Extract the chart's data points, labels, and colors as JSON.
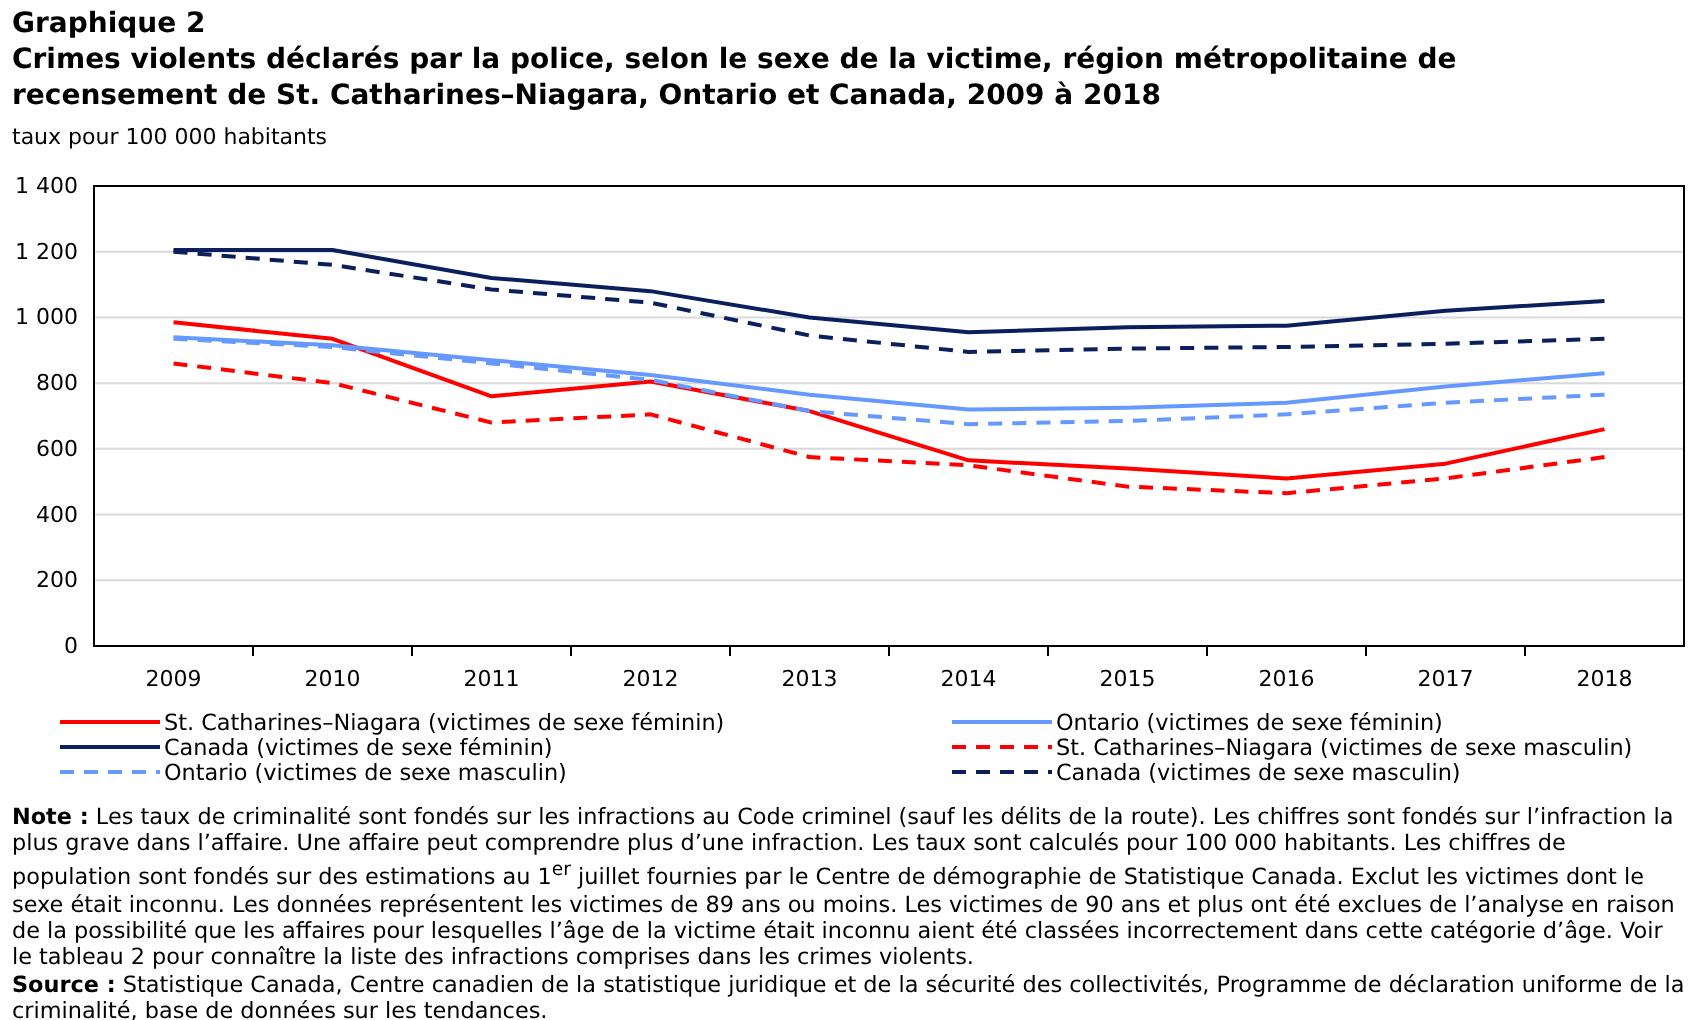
{
  "chart_data": {
    "type": "line",
    "title": "Graphique 2",
    "subtitle": "Crimes violents déclarés par la police, selon le sexe de la victime, région métropolitaine de recensement de St. Catharines–Niagara, Ontario et Canada, 2009 à 2018",
    "ylabel": "taux pour 100 000 habitants",
    "categories": [
      "2009",
      "2010",
      "2011",
      "2012",
      "2013",
      "2014",
      "2015",
      "2016",
      "2017",
      "2018"
    ],
    "series": [
      {
        "name": "St. Catharines–Niagara (victimes de sexe féminin)",
        "color": "#ff0000",
        "line_style": "solid",
        "values": [
          985,
          935,
          760,
          805,
          715,
          565,
          540,
          510,
          555,
          660
        ]
      },
      {
        "name": "Ontario (victimes de sexe féminin)",
        "color": "#6699ff",
        "line_style": "solid",
        "values": [
          940,
          915,
          870,
          825,
          765,
          720,
          725,
          740,
          790,
          830
        ]
      },
      {
        "name": "Canada (victimes de sexe féminin)",
        "color": "#0a1f5c",
        "line_style": "solid",
        "values": [
          1205,
          1205,
          1120,
          1080,
          1000,
          955,
          970,
          975,
          1020,
          1050
        ]
      },
      {
        "name": "St. Catharines–Niagara (victimes de sexe masculin)",
        "color": "#ff0000",
        "line_style": "dashed",
        "values": [
          860,
          800,
          680,
          705,
          575,
          550,
          485,
          465,
          510,
          575
        ]
      },
      {
        "name": "Ontario (victimes de sexe masculin)",
        "color": "#6699ff",
        "line_style": "dashed",
        "values": [
          935,
          910,
          860,
          810,
          715,
          675,
          685,
          705,
          740,
          765
        ]
      },
      {
        "name": "Canada (victimes de sexe masculin)",
        "color": "#0a1f5c",
        "line_style": "dashed",
        "values": [
          1200,
          1160,
          1085,
          1045,
          945,
          895,
          905,
          910,
          920,
          935
        ]
      }
    ],
    "ylim": [
      0,
      1400
    ],
    "yticks": [
      0,
      200,
      400,
      600,
      800,
      {
        "value": 1000,
        "label": "1 000"
      },
      {
        "value": 1200,
        "label": "1 200"
      },
      {
        "value": 1400,
        "label": "1 400"
      }
    ],
    "grid": "y",
    "legend": "bottom",
    "marker": "none",
    "annotations": [
      "Note : Les taux de criminalité sont fondés sur les infractions au Code criminel (sauf les délits de la route). Les chiffres sont fondés sur l’infraction la plus grave dans l’affaire. Une affaire peut comprendre plus d’une infraction. Les taux sont calculés pour 100 000 habitants. Les chiffres de population sont fondés sur des estimations au 1$^{er}$ juillet fournies par le Centre de démographie de Statistique Canada. Exclut les victimes dont le sexe était inconnu. Les données représentent les victimes de 89 ans ou moins. Les victimes de 90 ans et plus ont été exclues de l’analyse en raison de la possibilité que les affaires pour lesquelles l’âge de la victime était inconnu aient été classées incorrectement dans cette catégorie d’âge. Voir le tableau 2 pour connaître la liste des infractions comprises dans les crimes violents.",
      "Source : Statistique Canada, Centre canadien de la statistique juridique et de la sécurité des collectivités, Programme de déclaration uniforme de la criminalité, base de données sur les tendances."
    ]
  }
}
